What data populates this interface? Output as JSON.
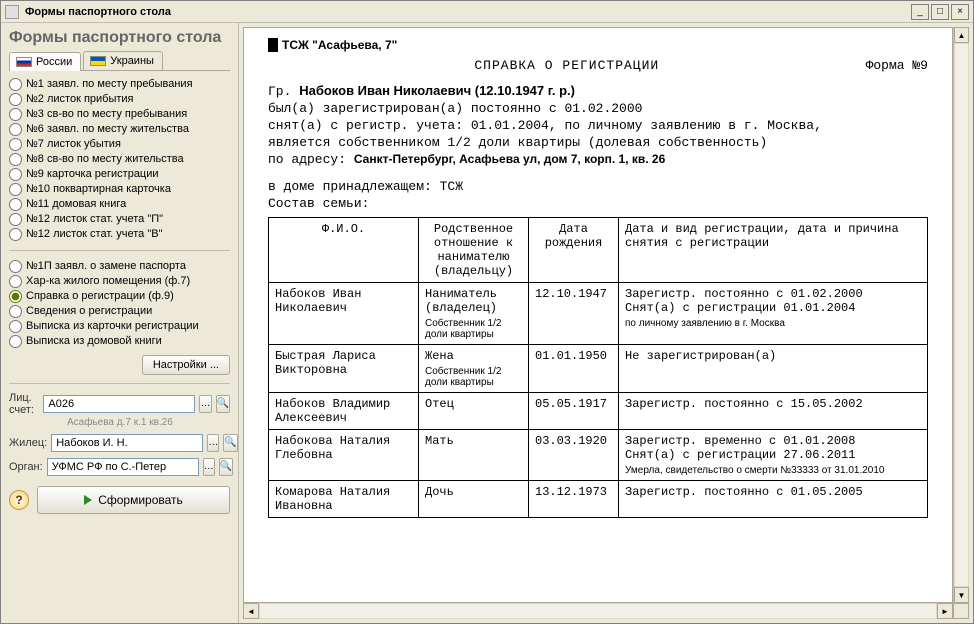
{
  "window": {
    "title": "Формы паспортного стола"
  },
  "sidebar": {
    "heading": "Формы паспортного стола",
    "tabs": {
      "russia": "России",
      "ukraine": "Украины"
    },
    "forms1": [
      "№1  заявл. по месту пребывания",
      "№2  листок прибытия",
      "№3  св-во по месту пребывания",
      "№6  заявл. по месту жительства",
      "№7  листок убытия",
      "№8  св-во по месту жительства",
      "№9  карточка регистрации",
      "№10  поквартирная карточка",
      "№11  домовая книга",
      "№12 листок стат. учета \"П\"",
      "№12 листок стат. учета \"В\""
    ],
    "forms2": [
      "№1П  заявл. о замене паспорта",
      "Хар-ка жилого помещения (ф.7)",
      "Справка о регистрации (ф.9)",
      "Сведения о регистрации",
      "Выписка из карточки регистрации",
      "Выписка из домовой книги"
    ],
    "forms2_selected_index": 2,
    "settings_btn": "Настройки ...",
    "fields": {
      "account_label": "Лиц. счет:",
      "account_value": "A026",
      "account_hint": "Асафьева д.7 к.1 кв.26",
      "resident_label": "Жилец:",
      "resident_value": "Набоков И. Н.",
      "organ_label": "Орган:",
      "organ_value": "УФМС РФ по С.-Петер"
    },
    "run_btn": "Сформировать"
  },
  "document": {
    "tsz": "ТСЖ \"Асафьева, 7\"",
    "title": "СПРАВКА О РЕГИСТРАЦИИ",
    "form_no": "Форма №9",
    "citizen_prefix": "Гр.  ",
    "citizen": "Набоков Иван Николаевич (12.10.1947 г. р.)",
    "line1": "был(а) зарегистрирован(а) постоянно с 01.02.2000",
    "line2": "снят(а) с регистр. учета: 01.01.2004, по личному заявлению в г. Москва,",
    "line3": "является собственником 1/2 доли квартиры (долевая собственность)",
    "address_prefix": "по адресу:  ",
    "address": "Санкт-Петербург, Асафьева ул, дом 7, корп. 1, кв. 26",
    "house_line": "в доме принадлежащем: ТСЖ",
    "family_label": "Состав семьи:",
    "table": {
      "headers": {
        "fio": "Ф.И.О.",
        "relation": "Родственное отношение к нанимателю (владельцу)",
        "dob": "Дата рождения",
        "reg": "Дата и вид регистрации,\nдата и причина снятия с регистрации"
      },
      "rows": [
        {
          "fio": "Набоков Иван Николаевич",
          "relation": "Наниматель (владелец)",
          "relation_sub": "Собственник 1/2 доли квартиры",
          "dob": "12.10.1947",
          "reg": "Зарегистр. постоянно с 01.02.2000\nСнят(а) с регистрации  01.01.2004",
          "reg_sub": "по личному заявлению в г. Москва"
        },
        {
          "fio": "Быстрая Лариса Викторовна",
          "relation": "Жена",
          "relation_sub": "Собственник 1/2 доли квартиры",
          "dob": "01.01.1950",
          "reg": "Не зарегистрирован(а)"
        },
        {
          "fio": "Набоков Владимир Алексеевич",
          "relation": "Отец",
          "dob": "05.05.1917",
          "reg": "Зарегистр. постоянно с 15.05.2002"
        },
        {
          "fio": "Набокова Наталия Глебовна",
          "relation": "Мать",
          "dob": "03.03.1920",
          "reg": "Зарегистр. временно с 01.01.2008\nСнят(а) с регистрации  27.06.2011",
          "reg_sub": "Умерла, свидетельство о смерти №33333 от 31.01.2010"
        },
        {
          "fio": "Комарова Наталия Ивановна",
          "relation": "Дочь",
          "dob": "13.12.1973",
          "reg": "Зарегистр. постоянно с 01.05.2005"
        }
      ],
      "col_widths": [
        "150px",
        "110px",
        "90px",
        "auto"
      ]
    }
  },
  "colors": {
    "window_bg": "#ece9d8",
    "border": "#aca899",
    "input_border": "#7f9db9"
  }
}
